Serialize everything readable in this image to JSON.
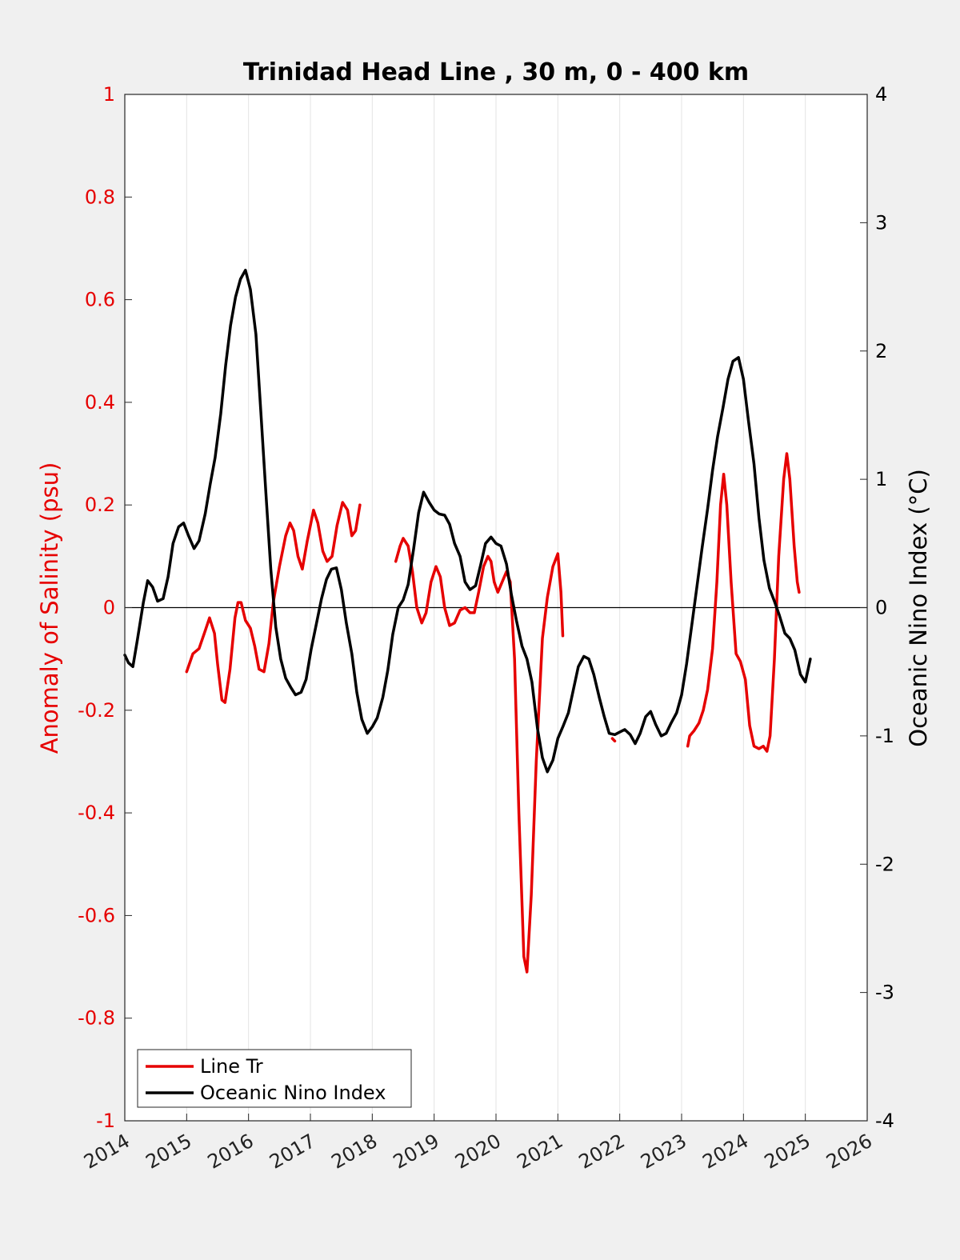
{
  "chart_data": {
    "type": "line",
    "title": "Trinidad Head Line , 30 m, 0 - 400 km",
    "xlabel": "",
    "xlim": [
      2014,
      2026
    ],
    "xticks": [
      "2014",
      "2015",
      "2016",
      "2017",
      "2018",
      "2019",
      "2020",
      "2021",
      "2022",
      "2023",
      "2024",
      "2025",
      "2026"
    ],
    "y_left": {
      "label": "Anomaly of Salinity (psu)",
      "ylim": [
        -1,
        1
      ],
      "ticks": [
        "-1",
        "-0.8",
        "-0.6",
        "-0.4",
        "-0.2",
        "0",
        "0.2",
        "0.4",
        "0.6",
        "0.8",
        "1"
      ],
      "color": "#e60000"
    },
    "y_right": {
      "label": "Oceanic Nino Index (°C)",
      "ylim": [
        -4,
        4
      ],
      "ticks": [
        "-4",
        "-3",
        "-2",
        "-1",
        "0",
        "1",
        "2",
        "3",
        "4"
      ],
      "color": "#000000"
    },
    "grid": "vertical",
    "legend_position": "bottom-left",
    "series": [
      {
        "name": "Line Tr",
        "axis": "left",
        "color": "#e60000",
        "segments": [
          [
            [
              2015.0,
              -0.125
            ],
            [
              2015.1,
              -0.09
            ],
            [
              2015.2,
              -0.08
            ],
            [
              2015.3,
              -0.045
            ],
            [
              2015.37,
              -0.02
            ],
            [
              2015.45,
              -0.05
            ],
            [
              2015.5,
              -0.11
            ],
            [
              2015.57,
              -0.18
            ],
            [
              2015.62,
              -0.185
            ],
            [
              2015.7,
              -0.12
            ],
            [
              2015.78,
              -0.02
            ],
            [
              2015.83,
              0.01
            ],
            [
              2015.88,
              0.01
            ],
            [
              2015.95,
              -0.025
            ],
            [
              2016.03,
              -0.04
            ],
            [
              2016.1,
              -0.075
            ],
            [
              2016.17,
              -0.12
            ],
            [
              2016.25,
              -0.125
            ],
            [
              2016.33,
              -0.07
            ],
            [
              2016.4,
              0.01
            ],
            [
              2016.5,
              0.08
            ],
            [
              2016.6,
              0.14
            ],
            [
              2016.67,
              0.165
            ],
            [
              2016.73,
              0.15
            ],
            [
              2016.8,
              0.1
            ],
            [
              2016.87,
              0.075
            ],
            [
              2016.95,
              0.13
            ],
            [
              2017.05,
              0.19
            ],
            [
              2017.12,
              0.165
            ],
            [
              2017.2,
              0.11
            ],
            [
              2017.27,
              0.09
            ],
            [
              2017.35,
              0.1
            ],
            [
              2017.43,
              0.16
            ],
            [
              2017.52,
              0.205
            ],
            [
              2017.6,
              0.19
            ],
            [
              2017.67,
              0.14
            ],
            [
              2017.73,
              0.15
            ],
            [
              2017.8,
              0.2
            ]
          ],
          [
            [
              2018.38,
              0.09
            ],
            [
              2018.45,
              0.12
            ],
            [
              2018.5,
              0.135
            ],
            [
              2018.58,
              0.12
            ],
            [
              2018.65,
              0.07
            ],
            [
              2018.72,
              0.0
            ],
            [
              2018.8,
              -0.03
            ],
            [
              2018.87,
              -0.01
            ],
            [
              2018.95,
              0.05
            ],
            [
              2019.03,
              0.08
            ],
            [
              2019.1,
              0.06
            ],
            [
              2019.17,
              0.0
            ],
            [
              2019.25,
              -0.035
            ],
            [
              2019.33,
              -0.03
            ],
            [
              2019.42,
              -0.005
            ],
            [
              2019.5,
              0.0
            ],
            [
              2019.58,
              -0.01
            ],
            [
              2019.65,
              -0.01
            ],
            [
              2019.72,
              0.03
            ],
            [
              2019.8,
              0.08
            ],
            [
              2019.87,
              0.1
            ],
            [
              2019.92,
              0.09
            ],
            [
              2019.97,
              0.05
            ],
            [
              2020.03,
              0.03
            ],
            [
              2020.1,
              0.05
            ],
            [
              2020.17,
              0.07
            ],
            [
              2020.23,
              0.05
            ],
            [
              2020.3,
              -0.1
            ],
            [
              2020.37,
              -0.4
            ],
            [
              2020.45,
              -0.68
            ],
            [
              2020.5,
              -0.71
            ],
            [
              2020.57,
              -0.56
            ],
            [
              2020.65,
              -0.3
            ],
            [
              2020.75,
              -0.06
            ],
            [
              2020.83,
              0.02
            ],
            [
              2020.92,
              0.08
            ],
            [
              2021.0,
              0.105
            ],
            [
              2021.05,
              0.03
            ],
            [
              2021.08,
              -0.055
            ]
          ]
        ],
        "point_sets": [
          [
            [
              2021.88,
              -0.255
            ],
            [
              2021.92,
              -0.26
            ]
          ]
        ],
        "segments_b": [
          [
            [
              2023.1,
              -0.27
            ],
            [
              2023.13,
              -0.25
            ],
            [
              2023.2,
              -0.24
            ],
            [
              2023.28,
              -0.225
            ],
            [
              2023.35,
              -0.2
            ],
            [
              2023.42,
              -0.16
            ],
            [
              2023.5,
              -0.08
            ],
            [
              2023.57,
              0.05
            ],
            [
              2023.63,
              0.2
            ],
            [
              2023.68,
              0.26
            ],
            [
              2023.73,
              0.2
            ],
            [
              2023.8,
              0.05
            ],
            [
              2023.88,
              -0.09
            ],
            [
              2023.95,
              -0.105
            ],
            [
              2024.03,
              -0.14
            ],
            [
              2024.1,
              -0.23
            ],
            [
              2024.17,
              -0.27
            ],
            [
              2024.25,
              -0.275
            ],
            [
              2024.32,
              -0.27
            ],
            [
              2024.38,
              -0.28
            ],
            [
              2024.43,
              -0.25
            ],
            [
              2024.5,
              -0.1
            ],
            [
              2024.57,
              0.1
            ],
            [
              2024.65,
              0.25
            ],
            [
              2024.7,
              0.3
            ],
            [
              2024.75,
              0.25
            ],
            [
              2024.82,
              0.12
            ],
            [
              2024.87,
              0.05
            ],
            [
              2024.9,
              0.03
            ]
          ]
        ]
      },
      {
        "name": "Oceanic Nino Index",
        "axis": "right",
        "color": "#000000",
        "segments": [
          [
            [
              2014.0,
              -0.37
            ],
            [
              2014.06,
              -0.43
            ],
            [
              2014.13,
              -0.46
            ],
            [
              2014.2,
              -0.26
            ],
            [
              2014.3,
              0.04
            ],
            [
              2014.37,
              0.21
            ],
            [
              2014.45,
              0.16
            ],
            [
              2014.53,
              0.05
            ],
            [
              2014.62,
              0.07
            ],
            [
              2014.7,
              0.24
            ],
            [
              2014.78,
              0.5
            ],
            [
              2014.87,
              0.63
            ],
            [
              2014.95,
              0.66
            ],
            [
              2015.03,
              0.56
            ],
            [
              2015.12,
              0.46
            ],
            [
              2015.2,
              0.52
            ],
            [
              2015.3,
              0.73
            ],
            [
              2015.38,
              0.96
            ],
            [
              2015.46,
              1.17
            ],
            [
              2015.55,
              1.51
            ],
            [
              2015.63,
              1.89
            ],
            [
              2015.71,
              2.2
            ],
            [
              2015.79,
              2.42
            ],
            [
              2015.87,
              2.56
            ],
            [
              2015.95,
              2.63
            ],
            [
              2016.03,
              2.48
            ],
            [
              2016.12,
              2.13
            ],
            [
              2016.2,
              1.52
            ],
            [
              2016.28,
              0.9
            ],
            [
              2016.36,
              0.3
            ],
            [
              2016.44,
              -0.15
            ],
            [
              2016.52,
              -0.4
            ],
            [
              2016.6,
              -0.55
            ],
            [
              2016.68,
              -0.62
            ],
            [
              2016.76,
              -0.68
            ],
            [
              2016.85,
              -0.66
            ],
            [
              2016.93,
              -0.56
            ],
            [
              2017.01,
              -0.33
            ],
            [
              2017.1,
              -0.12
            ],
            [
              2017.18,
              0.07
            ],
            [
              2017.26,
              0.22
            ],
            [
              2017.34,
              0.3
            ],
            [
              2017.42,
              0.31
            ],
            [
              2017.5,
              0.14
            ],
            [
              2017.58,
              -0.12
            ],
            [
              2017.67,
              -0.36
            ],
            [
              2017.75,
              -0.66
            ],
            [
              2017.83,
              -0.87
            ],
            [
              2017.92,
              -0.98
            ],
            [
              2018.0,
              -0.93
            ],
            [
              2018.08,
              -0.86
            ],
            [
              2018.17,
              -0.7
            ],
            [
              2018.25,
              -0.49
            ],
            [
              2018.33,
              -0.21
            ],
            [
              2018.42,
              0.0
            ],
            [
              2018.5,
              0.06
            ],
            [
              2018.58,
              0.18
            ],
            [
              2018.67,
              0.46
            ],
            [
              2018.75,
              0.74
            ],
            [
              2018.83,
              0.9
            ],
            [
              2018.92,
              0.82
            ],
            [
              2019.0,
              0.76
            ],
            [
              2019.08,
              0.73
            ],
            [
              2019.17,
              0.72
            ],
            [
              2019.25,
              0.65
            ],
            [
              2019.33,
              0.5
            ],
            [
              2019.42,
              0.4
            ],
            [
              2019.5,
              0.2
            ],
            [
              2019.58,
              0.14
            ],
            [
              2019.67,
              0.17
            ],
            [
              2019.75,
              0.33
            ],
            [
              2019.83,
              0.5
            ],
            [
              2019.92,
              0.55
            ],
            [
              2020.0,
              0.5
            ],
            [
              2020.08,
              0.48
            ],
            [
              2020.17,
              0.34
            ],
            [
              2020.25,
              0.1
            ],
            [
              2020.33,
              -0.1
            ],
            [
              2020.42,
              -0.3
            ],
            [
              2020.5,
              -0.4
            ],
            [
              2020.58,
              -0.58
            ],
            [
              2020.67,
              -0.94
            ],
            [
              2020.75,
              -1.17
            ],
            [
              2020.83,
              -1.28
            ],
            [
              2020.92,
              -1.19
            ],
            [
              2021.0,
              -1.02
            ],
            [
              2021.08,
              -0.93
            ],
            [
              2021.17,
              -0.82
            ],
            [
              2021.25,
              -0.64
            ],
            [
              2021.33,
              -0.46
            ],
            [
              2021.42,
              -0.38
            ],
            [
              2021.5,
              -0.4
            ],
            [
              2021.58,
              -0.52
            ],
            [
              2021.67,
              -0.7
            ],
            [
              2021.75,
              -0.85
            ],
            [
              2021.83,
              -0.98
            ],
            [
              2021.92,
              -0.99
            ],
            [
              2022.0,
              -0.97
            ],
            [
              2022.08,
              -0.95
            ],
            [
              2022.17,
              -0.99
            ],
            [
              2022.25,
              -1.06
            ],
            [
              2022.33,
              -0.98
            ],
            [
              2022.42,
              -0.85
            ],
            [
              2022.5,
              -0.81
            ],
            [
              2022.58,
              -0.91
            ],
            [
              2022.67,
              -1.0
            ],
            [
              2022.75,
              -0.98
            ],
            [
              2022.83,
              -0.9
            ],
            [
              2022.92,
              -0.82
            ],
            [
              2023.0,
              -0.68
            ],
            [
              2023.08,
              -0.44
            ],
            [
              2023.17,
              -0.12
            ],
            [
              2023.25,
              0.17
            ],
            [
              2023.33,
              0.46
            ],
            [
              2023.42,
              0.77
            ],
            [
              2023.5,
              1.07
            ],
            [
              2023.58,
              1.33
            ],
            [
              2023.67,
              1.56
            ],
            [
              2023.75,
              1.78
            ],
            [
              2023.83,
              1.92
            ],
            [
              2023.92,
              1.95
            ],
            [
              2024.0,
              1.78
            ],
            [
              2024.08,
              1.46
            ],
            [
              2024.17,
              1.12
            ],
            [
              2024.25,
              0.7
            ],
            [
              2024.33,
              0.37
            ],
            [
              2024.42,
              0.15
            ],
            [
              2024.5,
              0.05
            ],
            [
              2024.58,
              -0.06
            ],
            [
              2024.67,
              -0.2
            ],
            [
              2024.75,
              -0.24
            ],
            [
              2024.83,
              -0.33
            ],
            [
              2024.92,
              -0.52
            ],
            [
              2025.0,
              -0.58
            ],
            [
              2025.08,
              -0.4
            ]
          ]
        ]
      }
    ]
  }
}
